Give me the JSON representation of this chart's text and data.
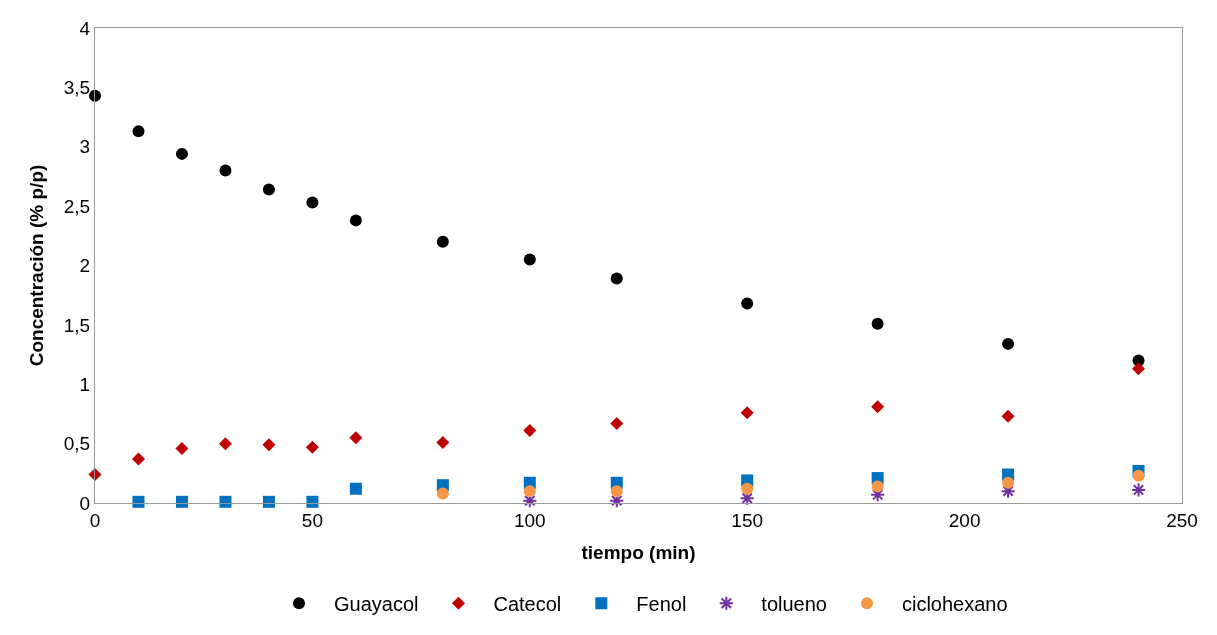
{
  "chart_data": {
    "type": "scatter",
    "xlabel": "tiempo (min)",
    "ylabel": "Concentración (% p/p)",
    "xlim": [
      0,
      250
    ],
    "xticks": [
      0,
      50,
      100,
      150,
      200,
      250
    ],
    "ylim": [
      0,
      4
    ],
    "yticks": [
      0,
      {
        "value": 0.5,
        "label": "0,5"
      },
      1,
      {
        "value": 1.5,
        "label": "1,5"
      },
      2,
      {
        "value": 2.5,
        "label": "2,5"
      },
      3,
      {
        "value": 3.5,
        "label": "3,5"
      },
      4
    ],
    "legend": "bottom",
    "series": [
      {
        "name": "Guayacol",
        "color": "#000000",
        "marker": "circle",
        "x": [
          0,
          10,
          20,
          30,
          40,
          50,
          60,
          80,
          100,
          120,
          150,
          180,
          210,
          240
        ],
        "values": [
          3.43,
          3.13,
          2.94,
          2.8,
          2.64,
          2.53,
          2.38,
          2.2,
          2.05,
          1.89,
          1.68,
          1.51,
          1.34,
          1.2
        ]
      },
      {
        "name": "Catecol",
        "color": "#c00000",
        "marker": "diamond",
        "x": [
          0,
          10,
          20,
          30,
          40,
          50,
          60,
          80,
          100,
          120,
          150,
          180,
          210,
          240
        ],
        "values": [
          0.24,
          0.37,
          0.46,
          0.5,
          0.49,
          0.47,
          0.55,
          0.51,
          0.61,
          0.67,
          0.76,
          0.81,
          0.73,
          1.13
        ]
      },
      {
        "name": "Fenol",
        "color": "#0070c0",
        "marker": "square",
        "x": [
          10,
          20,
          30,
          40,
          50,
          60,
          80,
          100,
          120,
          150,
          180,
          210,
          240
        ],
        "values": [
          0.01,
          0.01,
          0.01,
          0.01,
          0.01,
          0.12,
          0.15,
          0.17,
          0.17,
          0.19,
          0.21,
          0.24,
          0.27
        ]
      },
      {
        "name": "tolueno",
        "color": "#7030a0",
        "marker": "cross",
        "x": [
          100,
          120,
          150,
          180,
          210,
          240
        ],
        "values": [
          0.02,
          0.02,
          0.04,
          0.07,
          0.1,
          0.11
        ]
      },
      {
        "name": "ciclohexano",
        "color": "#f79646",
        "marker": "circle",
        "x": [
          80,
          100,
          120,
          150,
          180,
          210,
          240
        ],
        "values": [
          0.08,
          0.1,
          0.1,
          0.12,
          0.14,
          0.17,
          0.23
        ]
      }
    ]
  }
}
